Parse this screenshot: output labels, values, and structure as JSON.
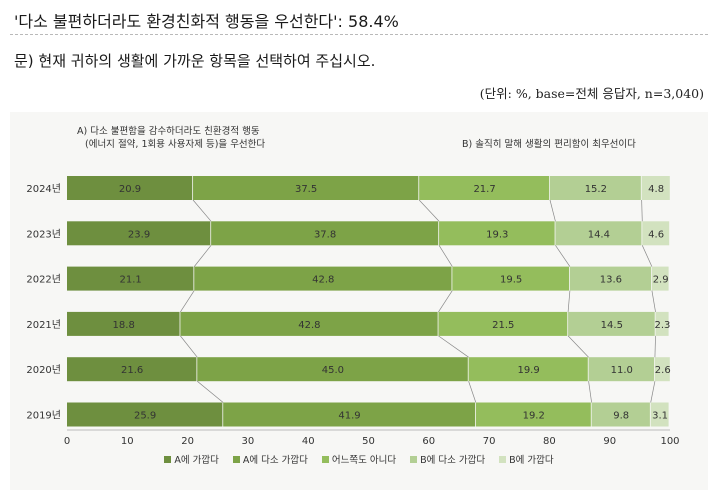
{
  "header": {
    "headline": "'다소 불편하더라도 환경친화적 행동을 우선한다': 58.4%",
    "question": "문) 현재 귀하의 생활에 가까운 항목을 선택하여 주십시오.",
    "unit_note": "(단위: %, base=전체 응답자, n=3,040)"
  },
  "chart_data": {
    "type": "bar",
    "orientation": "horizontal",
    "stacked": true,
    "annotations": {
      "a_line1": "A)  다소 불편함을 감수하더라도 친환경적 행동",
      "a_line2": "(에너지 절약, 1회용 사용자제 등)을 우선한다",
      "b_line": "B)  솔직히 말해 생활의 편리함이 최우선이다"
    },
    "categories": [
      "2024년",
      "2023년",
      "2022년",
      "2021년",
      "2020년",
      "2019년"
    ],
    "series": [
      {
        "name": "A에 가깝다",
        "color": "#6e8f3f",
        "values": [
          20.9,
          23.9,
          21.1,
          18.8,
          21.6,
          25.9
        ]
      },
      {
        "name": "A에 다소 가깝다",
        "color": "#7da347",
        "values": [
          37.5,
          37.8,
          42.8,
          42.8,
          45.0,
          41.9
        ]
      },
      {
        "name": "어느쪽도 아니다",
        "color": "#94bd5c",
        "values": [
          21.7,
          19.3,
          19.5,
          21.5,
          19.9,
          19.2
        ]
      },
      {
        "name": "B에 다소 가깝다",
        "color": "#b3cf94",
        "values": [
          15.2,
          14.4,
          13.6,
          14.5,
          11.0,
          9.8
        ]
      },
      {
        "name": "B에 가깝다",
        "color": "#d2e2bf",
        "values": [
          4.8,
          4.6,
          2.9,
          2.3,
          2.6,
          3.1
        ]
      }
    ],
    "value_labels": [
      [
        "20.9",
        "37.5",
        "21.7",
        "15.2",
        "4.8"
      ],
      [
        "23.9",
        "37.8",
        "19.3",
        "14.4",
        "4.6"
      ],
      [
        "21.1",
        "42.8",
        "19.5",
        "13.6",
        "2.9"
      ],
      [
        "18.8",
        "42.8",
        "21.5",
        "14.5",
        "2.3"
      ],
      [
        "21.6",
        "45.0",
        "19.9",
        "11.0",
        "2.6"
      ],
      [
        "25.9",
        "41.9",
        "19.2",
        "9.8",
        "3.1"
      ]
    ],
    "xlim": [
      0,
      100
    ],
    "xticks": [
      0,
      10,
      20,
      30,
      40,
      50,
      60,
      70,
      80,
      90,
      100
    ],
    "grid": false,
    "legend_position": "bottom",
    "connector_lines": true
  }
}
